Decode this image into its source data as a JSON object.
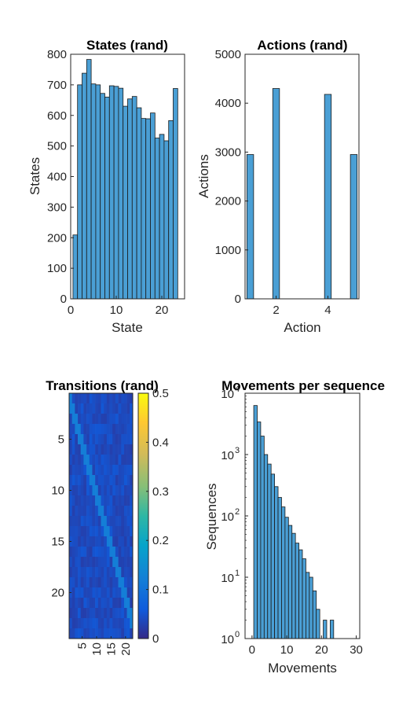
{
  "chart_data": [
    {
      "type": "bar",
      "title": "States (rand)",
      "xlabel": "State",
      "ylabel": "States",
      "xlim": [
        0,
        25
      ],
      "ylim": [
        0,
        800
      ],
      "x_ticks": [
        "0",
        "10",
        "20"
      ],
      "y_ticks": [
        "0",
        "100",
        "200",
        "300",
        "400",
        "500",
        "600",
        "700",
        "800"
      ],
      "categories": [
        1,
        2,
        3,
        4,
        5,
        6,
        7,
        8,
        9,
        10,
        11,
        12,
        13,
        14,
        15,
        16,
        17,
        18,
        19,
        20,
        21,
        22,
        23,
        24
      ],
      "values": [
        209,
        700,
        738,
        783,
        703,
        700,
        672,
        660,
        697,
        695,
        689,
        630,
        654,
        662,
        625,
        590,
        589,
        608,
        526,
        538,
        517,
        583,
        688,
        0
      ],
      "bar_color": "#4a9fd5"
    },
    {
      "type": "bar",
      "title": "Actions (rand)",
      "xlabel": "Action",
      "ylabel": "Actions",
      "xlim": [
        0.8,
        5.2
      ],
      "ylim": [
        0,
        5000
      ],
      "x_ticks": [
        "2",
        "4"
      ],
      "y_ticks": [
        "0",
        "1000",
        "2000",
        "3000",
        "4000",
        "5000"
      ],
      "categories": [
        1,
        2,
        3,
        4,
        5
      ],
      "values": [
        2950,
        4300,
        0,
        4180,
        2950
      ],
      "bar_color": "#4a9fd5"
    },
    {
      "type": "heatmap",
      "title": "Transitions (rand)",
      "x_ticks": [
        "5",
        "10",
        "15",
        "20"
      ],
      "y_ticks": [
        "5",
        "10",
        "15",
        "20"
      ],
      "colorbar_ticks": [
        "0",
        "0.1",
        "0.2",
        "0.3",
        "0.4",
        "0.5"
      ],
      "size": [
        24,
        22
      ],
      "clim": [
        0,
        0.5
      ],
      "background_value": 0.04,
      "diagonal_value": 0.12,
      "colormap": "parula"
    },
    {
      "type": "bar",
      "title": "Movements per sequence",
      "xlabel": "Movements",
      "ylabel": "Sequences",
      "xlim": [
        -2,
        31
      ],
      "ylim": [
        1,
        10000
      ],
      "y_scale": "log",
      "x_ticks": [
        "0",
        "10",
        "20",
        "30"
      ],
      "y_ticks": [
        {
          "base": "10",
          "exp": "0"
        },
        {
          "base": "10",
          "exp": "1"
        },
        {
          "base": "10",
          "exp": "2"
        },
        {
          "base": "10",
          "exp": "3"
        },
        {
          "base": "10",
          "exp": "4"
        }
      ],
      "categories": [
        1,
        2,
        3,
        4,
        5,
        6,
        7,
        8,
        9,
        10,
        11,
        12,
        13,
        14,
        15,
        16,
        17,
        18,
        19,
        20,
        21,
        22,
        23,
        24
      ],
      "values": [
        6300,
        3400,
        2000,
        1000,
        700,
        480,
        300,
        200,
        140,
        95,
        70,
        52,
        36,
        28,
        20,
        12,
        10,
        6,
        3,
        1,
        2,
        1,
        2,
        1
      ],
      "bar_color": "#4a9fd5"
    }
  ]
}
